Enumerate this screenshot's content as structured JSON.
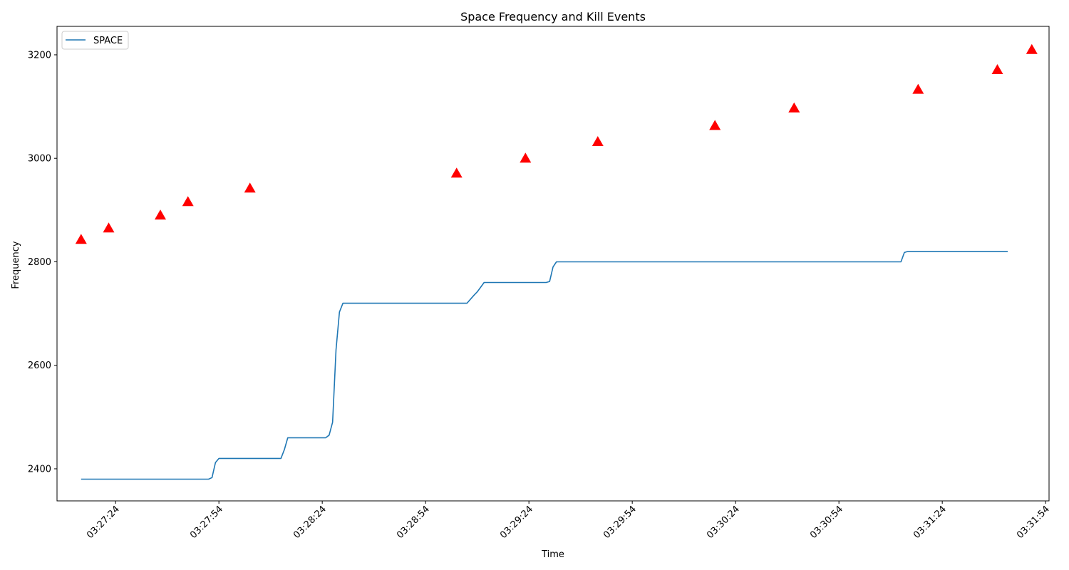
{
  "chart_data": {
    "type": "line",
    "title": "Space Frequency and Kill Events",
    "xlabel": "Time",
    "ylabel": "Frequency",
    "x_axis_kind": "time",
    "xlim": [
      "03:27:07",
      "03:31:55"
    ],
    "ylim": [
      2338,
      3255
    ],
    "x_ticks": [
      "03:27:24",
      "03:27:54",
      "03:28:24",
      "03:28:54",
      "03:29:24",
      "03:29:54",
      "03:30:24",
      "03:30:54",
      "03:31:24",
      "03:31:54"
    ],
    "y_ticks": [
      2400,
      2600,
      2800,
      3000,
      3200
    ],
    "grid": false,
    "legend": {
      "position": "top-left",
      "entries": [
        "SPACE"
      ]
    },
    "colors": {
      "line": "#1f77b4",
      "marker": "#ff0000"
    },
    "series": [
      {
        "name": "SPACE",
        "kind": "line",
        "points": [
          [
            "03:27:14",
            2380
          ],
          [
            "03:27:51",
            2380
          ],
          [
            "03:27:52",
            2383
          ],
          [
            "03:27:53",
            2412
          ],
          [
            "03:27:54",
            2420
          ],
          [
            "03:28:12",
            2420
          ],
          [
            "03:28:13",
            2437
          ],
          [
            "03:28:14",
            2460
          ],
          [
            "03:28:25",
            2460
          ],
          [
            "03:28:26",
            2465
          ],
          [
            "03:28:27",
            2490
          ],
          [
            "03:28:28",
            2630
          ],
          [
            "03:28:29",
            2703
          ],
          [
            "03:28:30",
            2720
          ],
          [
            "03:29:06",
            2720
          ],
          [
            "03:29:08",
            2735
          ],
          [
            "03:29:09",
            2742
          ],
          [
            "03:29:11",
            2760
          ],
          [
            "03:29:29",
            2760
          ],
          [
            "03:29:30",
            2762
          ],
          [
            "03:29:31",
            2790
          ],
          [
            "03:29:32",
            2800
          ],
          [
            "03:31:12",
            2800
          ],
          [
            "03:31:13",
            2818
          ],
          [
            "03:31:14",
            2820
          ],
          [
            "03:31:43",
            2820
          ]
        ]
      },
      {
        "kind": "marker",
        "marker": "triangle",
        "points": [
          [
            "03:27:14",
            2843
          ],
          [
            "03:27:22",
            2865
          ],
          [
            "03:27:37",
            2890
          ],
          [
            "03:27:45",
            2916
          ],
          [
            "03:28:03",
            2942
          ],
          [
            "03:29:03",
            2971
          ],
          [
            "03:29:23",
            3000
          ],
          [
            "03:29:44",
            3032
          ],
          [
            "03:30:18",
            3063
          ],
          [
            "03:30:41",
            3097
          ],
          [
            "03:31:17",
            3133
          ],
          [
            "03:31:40",
            3171
          ],
          [
            "03:31:50",
            3210
          ]
        ]
      }
    ]
  }
}
